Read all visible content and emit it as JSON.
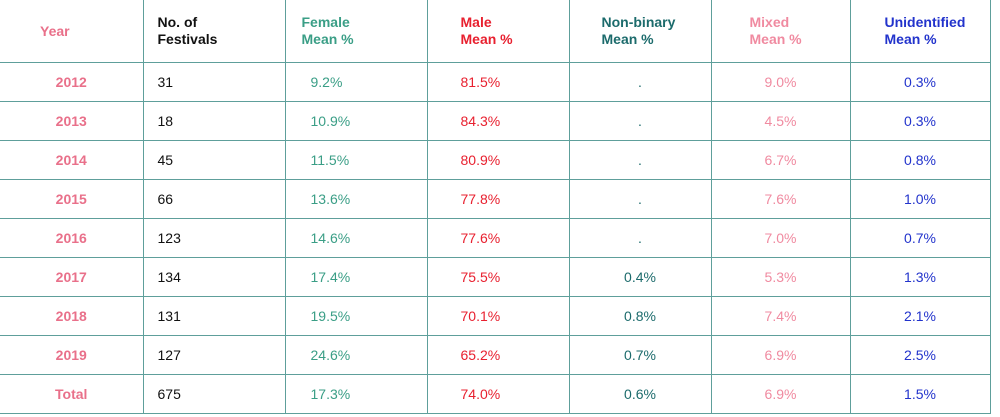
{
  "table": {
    "header": [
      "Year",
      "No. of\nFestivals",
      "Female\nMean %",
      "Male\nMean %",
      "Non-binary\nMean %",
      "Mixed\nMean %",
      "Unidentified\nMean %"
    ],
    "rows": [
      [
        "2012",
        "31",
        "9.2%",
        "81.5%",
        ".",
        "9.0%",
        "0.3%"
      ],
      [
        "2013",
        "18",
        "10.9%",
        "84.3%",
        ".",
        "4.5%",
        "0.3%"
      ],
      [
        "2014",
        "45",
        "11.5%",
        "80.9%",
        ".",
        "6.7%",
        "0.8%"
      ],
      [
        "2015",
        "66",
        "13.6%",
        "77.8%",
        ".",
        "7.6%",
        "1.0%"
      ],
      [
        "2016",
        "123",
        "14.6%",
        "77.6%",
        ".",
        "7.0%",
        "0.7%"
      ],
      [
        "2017",
        "134",
        "17.4%",
        "75.5%",
        "0.4%",
        "5.3%",
        "1.3%"
      ],
      [
        "2018",
        "131",
        "19.5%",
        "70.1%",
        "0.8%",
        "7.4%",
        "2.1%"
      ],
      [
        "2019",
        "127",
        "24.6%",
        "65.2%",
        "0.7%",
        "6.9%",
        "2.5%"
      ],
      [
        "Total",
        "675",
        "17.3%",
        "74.0%",
        "0.6%",
        "6.9%",
        "1.5%"
      ]
    ]
  }
}
